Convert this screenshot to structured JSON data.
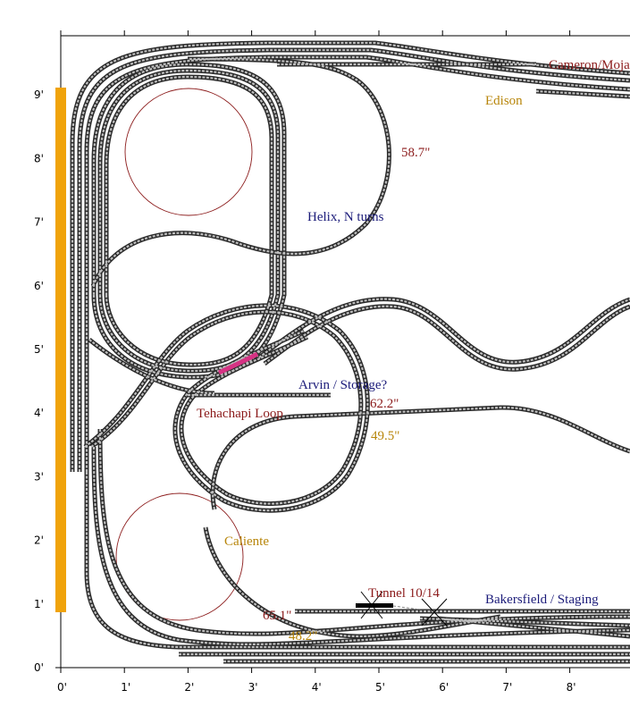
{
  "colors": {
    "dark_red": "#8b1a1a",
    "navy": "#1c1c7a",
    "gold": "#b8860b",
    "backdrop": "#f0a30a",
    "highlight": "#d63384",
    "tunnel": "#000000"
  },
  "axes": {
    "x_ticks": [
      "0'",
      "1'",
      "2'",
      "3'",
      "4'",
      "5'",
      "6'",
      "7'",
      "8'"
    ],
    "y_ticks": [
      "0'",
      "1'",
      "2'",
      "3'",
      "4'",
      "5'",
      "6'",
      "7'",
      "8'",
      "9'"
    ]
  },
  "labels": {
    "cameron": "Cameron/Mojave",
    "edison": "Edison",
    "helix": "Helix, N turns",
    "arvin": "Arvin / Storage?",
    "tehachapi": "Tehachapi Loop",
    "caliente": "Caliente",
    "tunnel": "Tunnel 10/14",
    "bakersfield": "Bakersfield / Staging"
  },
  "measurements": {
    "m1": "58.7\"",
    "m2": "62.2\"",
    "m3": "49.5\"",
    "m4": "65.1\"",
    "m5": "48.2\""
  }
}
